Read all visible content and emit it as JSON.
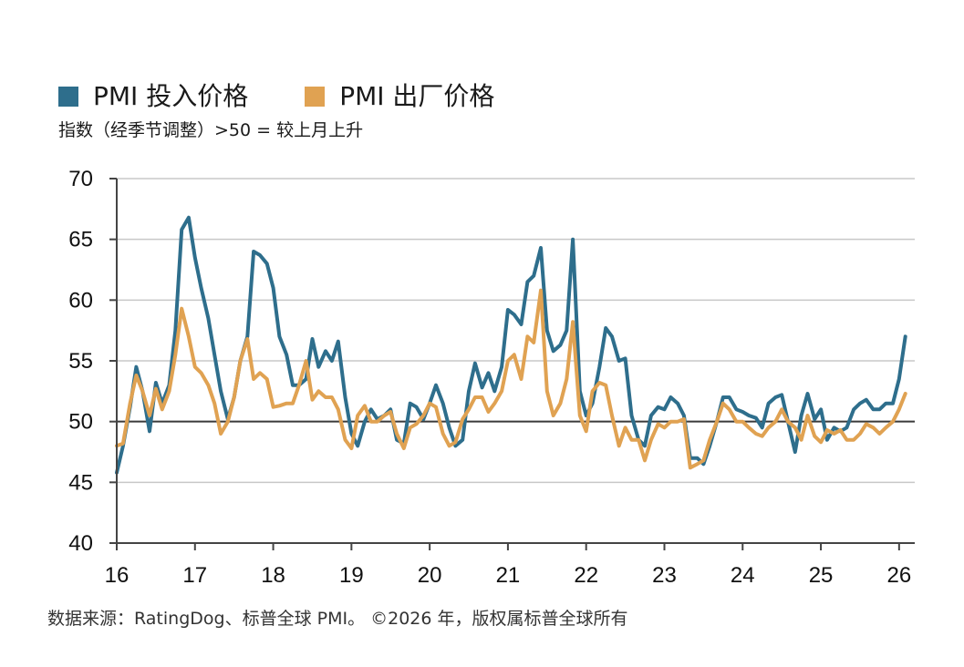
{
  "chart_data": {
    "type": "line",
    "title": "",
    "subtitle": "指数（经季节调整）>50 = 较上月上升",
    "xlabel": "",
    "ylabel": "",
    "ylim": [
      40,
      70
    ],
    "yticks": [
      40,
      45,
      50,
      55,
      60,
      65,
      70
    ],
    "xlim": [
      2016,
      2026.2
    ],
    "xticks": [
      {
        "value": 2016,
        "label": "16"
      },
      {
        "value": 2017,
        "label": "17"
      },
      {
        "value": 2018,
        "label": "18"
      },
      {
        "value": 2019,
        "label": "19"
      },
      {
        "value": 2020,
        "label": "20"
      },
      {
        "value": 2021,
        "label": "21"
      },
      {
        "value": 2022,
        "label": "22"
      },
      {
        "value": 2023,
        "label": "23"
      },
      {
        "value": 2024,
        "label": "24"
      },
      {
        "value": 2025,
        "label": "25"
      },
      {
        "value": 2026,
        "label": "26"
      }
    ],
    "grid": true,
    "reference_line": 50,
    "legend_position": "top-left",
    "series": [
      {
        "name": "PMI 投入价格",
        "color": "#2e6e8c",
        "points": [
          [
            2016.0,
            45.8
          ],
          [
            2016.08,
            48.0
          ],
          [
            2016.17,
            51.2
          ],
          [
            2016.25,
            54.5
          ],
          [
            2016.33,
            52.5
          ],
          [
            2016.42,
            49.2
          ],
          [
            2016.5,
            53.2
          ],
          [
            2016.58,
            51.5
          ],
          [
            2016.67,
            53.0
          ],
          [
            2016.75,
            57.5
          ],
          [
            2016.83,
            65.8
          ],
          [
            2016.92,
            66.8
          ],
          [
            2017.0,
            63.5
          ],
          [
            2017.08,
            61.0
          ],
          [
            2017.17,
            58.5
          ],
          [
            2017.25,
            55.5
          ],
          [
            2017.33,
            52.5
          ],
          [
            2017.42,
            50.2
          ],
          [
            2017.5,
            52.0
          ],
          [
            2017.58,
            55.0
          ],
          [
            2017.67,
            57.0
          ],
          [
            2017.75,
            64.0
          ],
          [
            2017.83,
            63.7
          ],
          [
            2017.92,
            63.0
          ],
          [
            2018.0,
            61.0
          ],
          [
            2018.08,
            57.0
          ],
          [
            2018.17,
            55.5
          ],
          [
            2018.25,
            53.0
          ],
          [
            2018.33,
            53.0
          ],
          [
            2018.42,
            53.5
          ],
          [
            2018.5,
            56.8
          ],
          [
            2018.58,
            54.5
          ],
          [
            2018.67,
            55.8
          ],
          [
            2018.75,
            55.0
          ],
          [
            2018.83,
            56.6
          ],
          [
            2018.92,
            52.0
          ],
          [
            2019.0,
            49.0
          ],
          [
            2019.08,
            48.0
          ],
          [
            2019.17,
            50.0
          ],
          [
            2019.25,
            51.0
          ],
          [
            2019.33,
            50.2
          ],
          [
            2019.42,
            50.5
          ],
          [
            2019.5,
            51.0
          ],
          [
            2019.58,
            48.5
          ],
          [
            2019.67,
            48.2
          ],
          [
            2019.75,
            51.5
          ],
          [
            2019.83,
            51.2
          ],
          [
            2019.92,
            50.2
          ],
          [
            2020.0,
            51.5
          ],
          [
            2020.08,
            53.0
          ],
          [
            2020.17,
            51.5
          ],
          [
            2020.25,
            49.5
          ],
          [
            2020.33,
            48.0
          ],
          [
            2020.42,
            48.5
          ],
          [
            2020.5,
            52.5
          ],
          [
            2020.58,
            54.8
          ],
          [
            2020.67,
            52.8
          ],
          [
            2020.75,
            54.0
          ],
          [
            2020.83,
            52.5
          ],
          [
            2020.92,
            54.5
          ],
          [
            2021.0,
            59.2
          ],
          [
            2021.08,
            58.8
          ],
          [
            2021.17,
            58.0
          ],
          [
            2021.25,
            61.5
          ],
          [
            2021.33,
            62.0
          ],
          [
            2021.42,
            64.3
          ],
          [
            2021.5,
            57.5
          ],
          [
            2021.58,
            55.8
          ],
          [
            2021.67,
            56.3
          ],
          [
            2021.75,
            57.5
          ],
          [
            2021.83,
            65.0
          ],
          [
            2021.92,
            52.5
          ],
          [
            2022.0,
            50.5
          ],
          [
            2022.08,
            51.5
          ],
          [
            2022.17,
            54.5
          ],
          [
            2022.25,
            57.7
          ],
          [
            2022.33,
            57.0
          ],
          [
            2022.42,
            55.0
          ],
          [
            2022.5,
            55.2
          ],
          [
            2022.58,
            50.5
          ],
          [
            2022.67,
            48.5
          ],
          [
            2022.75,
            48.0
          ],
          [
            2022.83,
            50.5
          ],
          [
            2022.92,
            51.2
          ],
          [
            2023.0,
            51.0
          ],
          [
            2023.08,
            52.0
          ],
          [
            2023.17,
            51.5
          ],
          [
            2023.25,
            50.5
          ],
          [
            2023.33,
            47.0
          ],
          [
            2023.42,
            47.0
          ],
          [
            2023.5,
            46.5
          ],
          [
            2023.58,
            48.0
          ],
          [
            2023.67,
            50.0
          ],
          [
            2023.75,
            52.0
          ],
          [
            2023.83,
            52.0
          ],
          [
            2023.92,
            51.0
          ],
          [
            2024.0,
            50.8
          ],
          [
            2024.08,
            50.5
          ],
          [
            2024.17,
            50.3
          ],
          [
            2024.25,
            49.5
          ],
          [
            2024.33,
            51.5
          ],
          [
            2024.42,
            52.0
          ],
          [
            2024.5,
            52.2
          ],
          [
            2024.58,
            50.0
          ],
          [
            2024.67,
            47.5
          ],
          [
            2024.75,
            50.5
          ],
          [
            2024.83,
            52.3
          ],
          [
            2024.92,
            50.2
          ],
          [
            2025.0,
            51.0
          ],
          [
            2025.08,
            48.5
          ],
          [
            2025.17,
            49.5
          ],
          [
            2025.25,
            49.2
          ],
          [
            2025.33,
            49.5
          ],
          [
            2025.42,
            51.0
          ],
          [
            2025.5,
            51.5
          ],
          [
            2025.58,
            51.8
          ],
          [
            2025.67,
            51.0
          ],
          [
            2025.75,
            51.0
          ],
          [
            2025.83,
            51.5
          ],
          [
            2025.92,
            51.5
          ],
          [
            2026.0,
            53.5
          ],
          [
            2026.08,
            57.0
          ]
        ]
      },
      {
        "name": "PMI 出厂价格",
        "color": "#e0a252",
        "points": [
          [
            2016.0,
            48.0
          ],
          [
            2016.08,
            48.2
          ],
          [
            2016.17,
            51.5
          ],
          [
            2016.25,
            53.8
          ],
          [
            2016.33,
            52.5
          ],
          [
            2016.42,
            50.5
          ],
          [
            2016.5,
            52.7
          ],
          [
            2016.58,
            51.0
          ],
          [
            2016.67,
            52.5
          ],
          [
            2016.75,
            55.5
          ],
          [
            2016.83,
            59.3
          ],
          [
            2016.92,
            57.0
          ],
          [
            2017.0,
            54.5
          ],
          [
            2017.08,
            54.0
          ],
          [
            2017.17,
            53.0
          ],
          [
            2017.25,
            51.5
          ],
          [
            2017.33,
            49.0
          ],
          [
            2017.42,
            50.0
          ],
          [
            2017.5,
            52.0
          ],
          [
            2017.58,
            55.0
          ],
          [
            2017.67,
            56.8
          ],
          [
            2017.75,
            53.5
          ],
          [
            2017.83,
            54.0
          ],
          [
            2017.92,
            53.5
          ],
          [
            2018.0,
            51.2
          ],
          [
            2018.08,
            51.3
          ],
          [
            2018.17,
            51.5
          ],
          [
            2018.25,
            51.5
          ],
          [
            2018.33,
            53.0
          ],
          [
            2018.42,
            55.0
          ],
          [
            2018.5,
            51.8
          ],
          [
            2018.58,
            52.5
          ],
          [
            2018.67,
            52.0
          ],
          [
            2018.75,
            52.0
          ],
          [
            2018.83,
            51.0
          ],
          [
            2018.92,
            48.5
          ],
          [
            2019.0,
            47.8
          ],
          [
            2019.08,
            50.5
          ],
          [
            2019.17,
            51.3
          ],
          [
            2019.25,
            50.0
          ],
          [
            2019.33,
            50.0
          ],
          [
            2019.42,
            50.5
          ],
          [
            2019.5,
            50.8
          ],
          [
            2019.58,
            49.0
          ],
          [
            2019.67,
            47.8
          ],
          [
            2019.75,
            49.5
          ],
          [
            2019.83,
            49.8
          ],
          [
            2019.92,
            50.5
          ],
          [
            2020.0,
            51.5
          ],
          [
            2020.08,
            51.2
          ],
          [
            2020.17,
            49.0
          ],
          [
            2020.25,
            48.0
          ],
          [
            2020.33,
            48.3
          ],
          [
            2020.42,
            50.2
          ],
          [
            2020.5,
            51.0
          ],
          [
            2020.58,
            52.0
          ],
          [
            2020.67,
            52.0
          ],
          [
            2020.75,
            50.8
          ],
          [
            2020.83,
            51.5
          ],
          [
            2020.92,
            52.5
          ],
          [
            2021.0,
            55.0
          ],
          [
            2021.08,
            55.5
          ],
          [
            2021.17,
            53.5
          ],
          [
            2021.25,
            57.0
          ],
          [
            2021.33,
            56.5
          ],
          [
            2021.42,
            60.8
          ],
          [
            2021.5,
            52.5
          ],
          [
            2021.58,
            50.5
          ],
          [
            2021.67,
            51.5
          ],
          [
            2021.75,
            53.5
          ],
          [
            2021.83,
            58.2
          ],
          [
            2021.92,
            50.5
          ],
          [
            2022.0,
            49.2
          ],
          [
            2022.08,
            52.5
          ],
          [
            2022.17,
            53.2
          ],
          [
            2022.25,
            53.0
          ],
          [
            2022.33,
            50.5
          ],
          [
            2022.42,
            48.0
          ],
          [
            2022.5,
            49.5
          ],
          [
            2022.58,
            48.5
          ],
          [
            2022.67,
            48.5
          ],
          [
            2022.75,
            46.8
          ],
          [
            2022.83,
            48.5
          ],
          [
            2022.92,
            49.8
          ],
          [
            2023.0,
            49.5
          ],
          [
            2023.08,
            50.0
          ],
          [
            2023.17,
            50.0
          ],
          [
            2023.25,
            50.2
          ],
          [
            2023.33,
            46.2
          ],
          [
            2023.42,
            46.5
          ],
          [
            2023.5,
            46.8
          ],
          [
            2023.58,
            48.5
          ],
          [
            2023.67,
            50.0
          ],
          [
            2023.75,
            51.5
          ],
          [
            2023.83,
            51.0
          ],
          [
            2023.92,
            50.0
          ],
          [
            2024.0,
            50.0
          ],
          [
            2024.08,
            49.5
          ],
          [
            2024.17,
            49.0
          ],
          [
            2024.25,
            48.8
          ],
          [
            2024.33,
            49.5
          ],
          [
            2024.42,
            50.0
          ],
          [
            2024.5,
            51.0
          ],
          [
            2024.58,
            50.0
          ],
          [
            2024.67,
            49.5
          ],
          [
            2024.75,
            48.5
          ],
          [
            2024.83,
            50.5
          ],
          [
            2024.92,
            48.8
          ],
          [
            2025.0,
            48.3
          ],
          [
            2025.08,
            49.3
          ],
          [
            2025.17,
            49.0
          ],
          [
            2025.25,
            49.3
          ],
          [
            2025.33,
            48.5
          ],
          [
            2025.42,
            48.5
          ],
          [
            2025.5,
            49.0
          ],
          [
            2025.58,
            49.8
          ],
          [
            2025.67,
            49.5
          ],
          [
            2025.75,
            49.0
          ],
          [
            2025.83,
            49.5
          ],
          [
            2025.92,
            50.0
          ],
          [
            2026.0,
            51.0
          ],
          [
            2026.08,
            52.3
          ]
        ]
      }
    ]
  },
  "legend": {
    "items": [
      {
        "label": "PMI 投入价格",
        "color": "#2e6e8c"
      },
      {
        "label": "PMI 出厂价格",
        "color": "#e0a252"
      }
    ]
  },
  "subtitle": "指数（经季节调整）>50 = 较上月上升",
  "source": "数据来源：RatingDog、标普全球 PMI。 ©2026 年，版权属标普全球所有",
  "colors": {
    "grid": "#c8c8c8",
    "axis": "#444444",
    "reference": "#3a3a3a"
  }
}
